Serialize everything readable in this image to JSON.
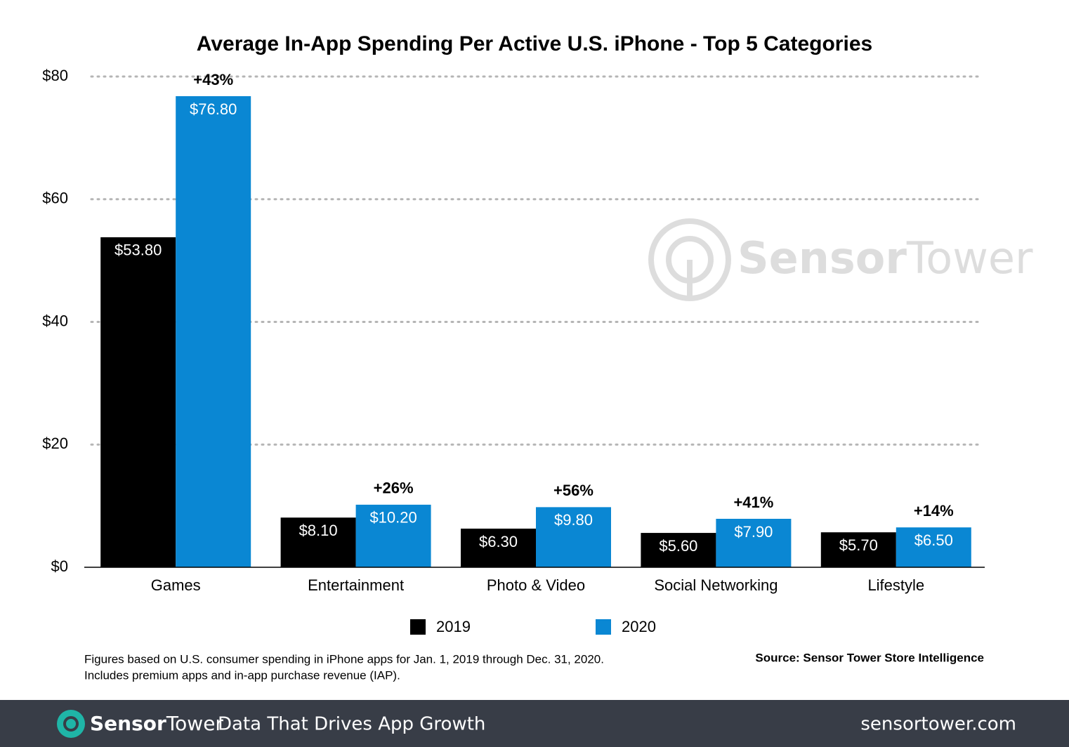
{
  "chart_data": {
    "type": "bar",
    "title": "Average In-App Spending Per Active U.S. iPhone - Top 5 Categories",
    "categories": [
      "Games",
      "Entertainment",
      "Photo & Video",
      "Social Networking",
      "Lifestyle"
    ],
    "series": [
      {
        "name": "2019",
        "color": "#000000",
        "values": [
          53.8,
          8.1,
          6.3,
          5.6,
          5.7
        ],
        "value_labels": [
          "$53.80",
          "$8.10",
          "$6.30",
          "$5.60",
          "$5.70"
        ]
      },
      {
        "name": "2020",
        "color": "#0a87d3",
        "values": [
          76.8,
          10.2,
          9.8,
          7.9,
          6.5
        ],
        "value_labels": [
          "$76.80",
          "$10.20",
          "$9.80",
          "$7.90",
          "$6.50"
        ]
      }
    ],
    "annotations": [
      "+43%",
      "+26%",
      "+56%",
      "+41%",
      "+14%"
    ],
    "ylim": [
      0,
      80
    ],
    "yticks": [
      {
        "value": 0,
        "label": "$0"
      },
      {
        "value": 20,
        "label": "$20"
      },
      {
        "value": 40,
        "label": "$40"
      },
      {
        "value": 60,
        "label": "$60"
      },
      {
        "value": 80,
        "label": "$80"
      }
    ],
    "grid": true,
    "notes": [
      "Figures based on U.S. consumer spending in iPhone apps for Jan. 1, 2019 through Dec. 31, 2020.",
      "Includes premium apps and in-app purchase revenue (IAP)."
    ],
    "source": "Source: Sensor Tower Store Intelligence"
  },
  "footer": {
    "brand": [
      "Sensor",
      "Tower"
    ],
    "tagline": "Data That Drives App Growth",
    "url": "sensortower.com"
  }
}
